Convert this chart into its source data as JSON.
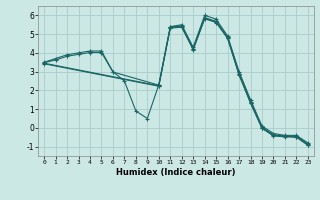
{
  "background_color": "#cce8e4",
  "grid_color": "#aacccc",
  "line_color": "#1a6666",
  "marker_color": "#1a6666",
  "xlabel": "Humidex (Indice chaleur)",
  "xlim": [
    -0.5,
    23.5
  ],
  "ylim": [
    -1.5,
    6.5
  ],
  "yticks": [
    -1,
    0,
    1,
    2,
    3,
    4,
    5,
    6
  ],
  "xticks": [
    0,
    1,
    2,
    3,
    4,
    5,
    6,
    7,
    8,
    9,
    10,
    11,
    12,
    13,
    14,
    15,
    16,
    17,
    18,
    19,
    20,
    21,
    22,
    23
  ],
  "series": [
    {
      "x": [
        0,
        1,
        2,
        3,
        4,
        5,
        6,
        7,
        8,
        9,
        10,
        11,
        12,
        13,
        14,
        15,
        16,
        17,
        18,
        19,
        20,
        21,
        22,
        23
      ],
      "y": [
        3.5,
        3.7,
        3.9,
        4.0,
        4.1,
        4.1,
        3.0,
        2.5,
        0.9,
        0.5,
        2.3,
        5.4,
        5.5,
        4.3,
        6.0,
        5.8,
        4.9,
        3.0,
        1.5,
        0.1,
        -0.3,
        -0.4,
        -0.4,
        -0.8
      ]
    },
    {
      "x": [
        0,
        1,
        2,
        3,
        4,
        5,
        6,
        10,
        11,
        12,
        13,
        14,
        15,
        16,
        17,
        18,
        19,
        20,
        21,
        22,
        23
      ],
      "y": [
        3.48,
        3.62,
        3.82,
        3.92,
        4.02,
        4.02,
        2.98,
        2.28,
        5.38,
        5.43,
        4.23,
        5.88,
        5.68,
        4.83,
        2.88,
        1.38,
        0.03,
        -0.37,
        -0.44,
        -0.45,
        -0.87
      ]
    },
    {
      "x": [
        0,
        10,
        11,
        12,
        13,
        14,
        15,
        16,
        17,
        18,
        19,
        20,
        21,
        22,
        23
      ],
      "y": [
        3.45,
        2.25,
        5.35,
        5.4,
        4.2,
        5.85,
        5.65,
        4.8,
        2.85,
        1.35,
        0.0,
        -0.4,
        -0.45,
        -0.47,
        -0.9
      ]
    },
    {
      "x": [
        0,
        10,
        11,
        12,
        13,
        14,
        15,
        16,
        17,
        18,
        19,
        20,
        21,
        22,
        23
      ],
      "y": [
        3.42,
        2.22,
        5.32,
        5.37,
        4.17,
        5.82,
        5.62,
        4.77,
        2.82,
        1.32,
        -0.03,
        -0.43,
        -0.48,
        -0.5,
        -0.93
      ]
    }
  ]
}
